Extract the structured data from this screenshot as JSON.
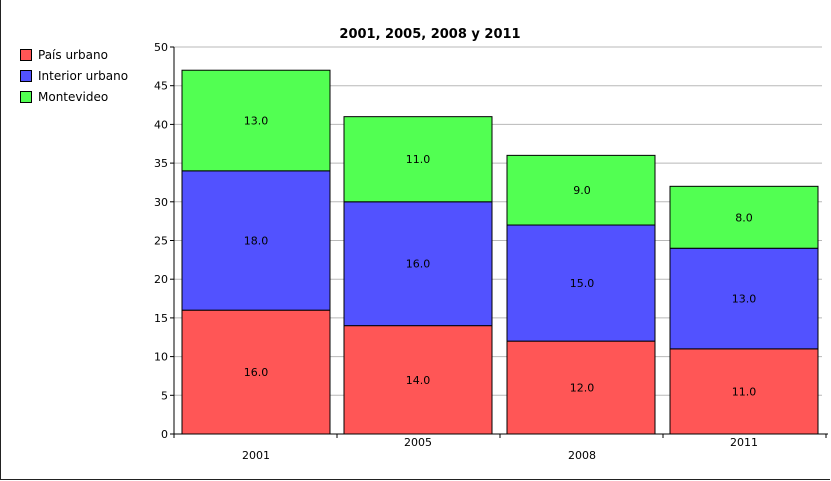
{
  "chart_data": {
    "type": "bar",
    "stacked": true,
    "title": "2001, 2005, 2008 y 2011",
    "categories": [
      "2001",
      "2005",
      "2008",
      "2011"
    ],
    "series": [
      {
        "name": "País urbano",
        "color": "#ff5656",
        "values": [
          16,
          14,
          12,
          11
        ],
        "labels": [
          "16.0",
          "14.0",
          "12.0",
          "11.0"
        ]
      },
      {
        "name": "Interior urbano",
        "color": "#5252ff",
        "values": [
          18,
          16,
          15,
          13
        ],
        "labels": [
          "18.0",
          "16.0",
          "15.0",
          "13.0"
        ]
      },
      {
        "name": "Montevideo",
        "color": "#52ff52",
        "values": [
          13,
          11,
          9,
          8
        ],
        "labels": [
          "13.0",
          "11.0",
          "9.0",
          "8.0"
        ]
      }
    ],
    "ylim": [
      0,
      50
    ],
    "yticks": [
      "0",
      "5",
      "10",
      "15",
      "20",
      "25",
      "30",
      "35",
      "40",
      "45",
      "50"
    ],
    "grid": true,
    "legend_position": "top-left"
  }
}
